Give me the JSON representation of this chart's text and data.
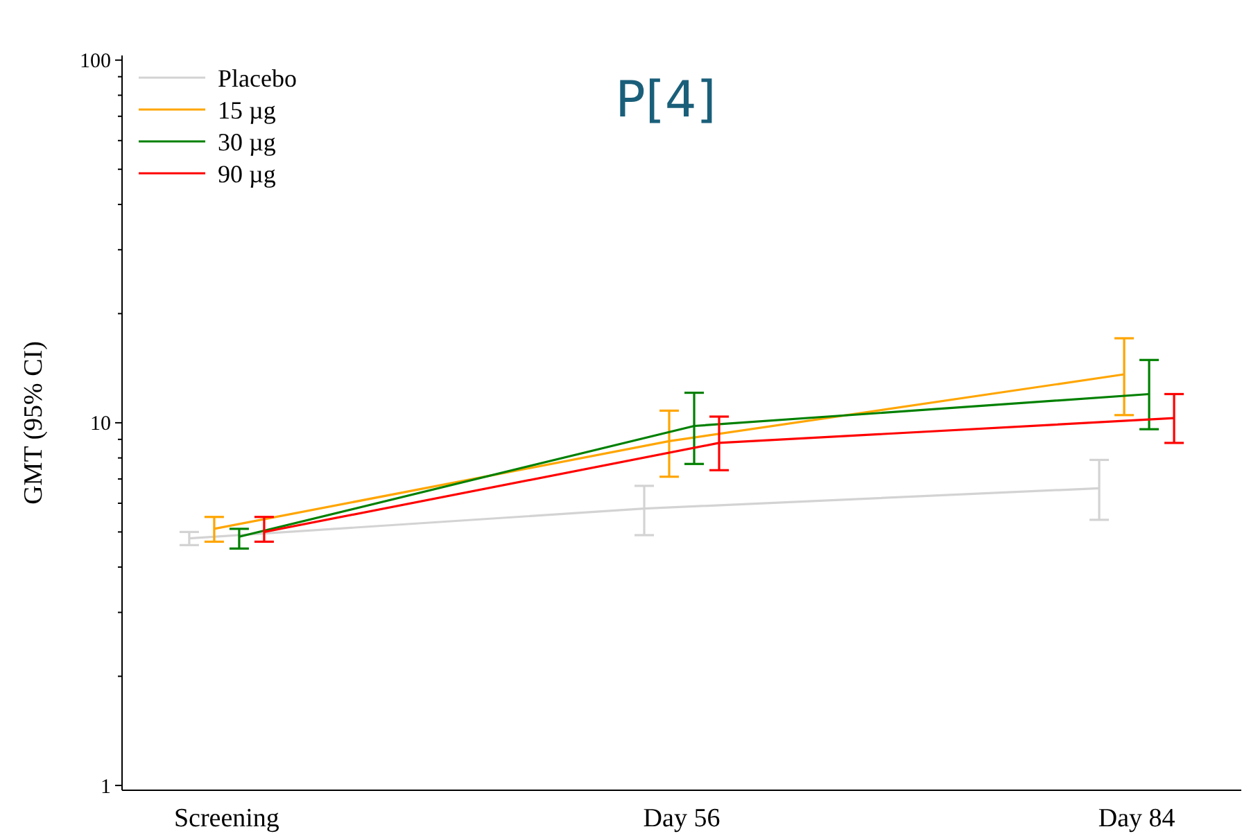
{
  "chart_data": {
    "type": "line",
    "title": "P[4]",
    "ylabel": "GMT (95% CI)",
    "categories": [
      "Screening",
      "Day 56",
      "Day 84"
    ],
    "series": [
      {
        "name": "Placebo",
        "color": "#d3d3d3",
        "values": [
          4.8,
          5.8,
          6.6
        ],
        "errors": [
          [
            4.6,
            5.0
          ],
          [
            4.9,
            6.7
          ],
          [
            5.4,
            7.9
          ]
        ]
      },
      {
        "name": "15 µg",
        "color": "#ffa500",
        "values": [
          5.1,
          8.9,
          13.6
        ],
        "errors": [
          [
            4.7,
            5.5
          ],
          [
            7.1,
            10.8
          ],
          [
            10.5,
            17.1
          ]
        ]
      },
      {
        "name": "30 µg",
        "color": "#008000",
        "values": [
          4.85,
          9.8,
          12.0
        ],
        "errors": [
          [
            4.5,
            5.1
          ],
          [
            7.7,
            12.1
          ],
          [
            9.6,
            14.9
          ]
        ]
      },
      {
        "name": "90 µg",
        "color": "#ff0000",
        "values": [
          5.0,
          8.8,
          10.3
        ],
        "errors": [
          [
            4.7,
            5.5
          ],
          [
            7.4,
            10.4
          ],
          [
            8.8,
            12.0
          ]
        ]
      }
    ],
    "log": true,
    "ylim": [
      0.97,
      103
    ],
    "yticks": [
      1,
      {
        "value": 2,
        "label": null
      },
      {
        "value": 3,
        "label": null
      },
      {
        "value": 4,
        "label": null
      },
      {
        "value": 5,
        "label": null
      },
      {
        "value": 6,
        "label": null
      },
      {
        "value": 7,
        "label": null
      },
      {
        "value": 8,
        "label": null
      },
      {
        "value": 9,
        "label": null
      },
      10,
      {
        "value": 20,
        "label": null
      },
      {
        "value": 30,
        "label": null
      },
      {
        "value": 40,
        "label": null
      },
      {
        "value": 50,
        "label": null
      },
      {
        "value": 60,
        "label": null
      },
      {
        "value": 70,
        "label": null
      },
      {
        "value": 80,
        "label": null
      },
      {
        "value": 90,
        "label": null
      },
      100
    ],
    "legend": "top left",
    "grid": false,
    "marker": "none",
    "line_style": "solid"
  }
}
